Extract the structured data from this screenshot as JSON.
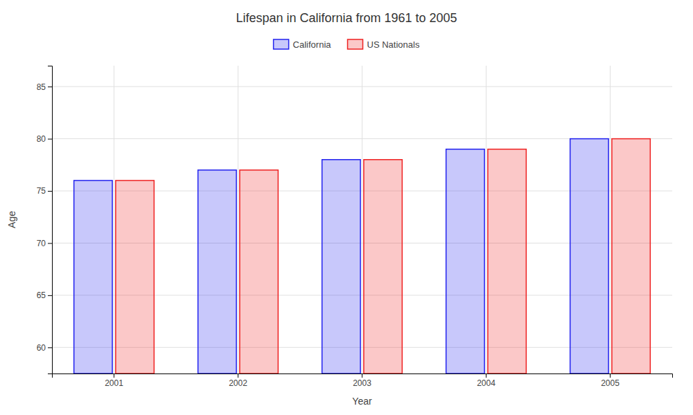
{
  "chart_data": {
    "type": "bar",
    "title": "Lifespan in California from 1961 to 2005",
    "xlabel": "Year",
    "ylabel": "Age",
    "categories": [
      "2001",
      "2002",
      "2003",
      "2004",
      "2005"
    ],
    "series": [
      {
        "name": "California",
        "color": "#2222ee",
        "values": [
          76.0,
          77.0,
          78.0,
          79.0,
          80.0
        ]
      },
      {
        "name": "US Nationals",
        "color": "#ee2222",
        "values": [
          76.0,
          77.0,
          78.0,
          79.0,
          80.0
        ]
      }
    ],
    "ylim": [
      57.5,
      87
    ],
    "yticks": [
      60,
      65,
      70,
      75,
      80,
      85
    ],
    "grid": true,
    "legend": "top"
  }
}
